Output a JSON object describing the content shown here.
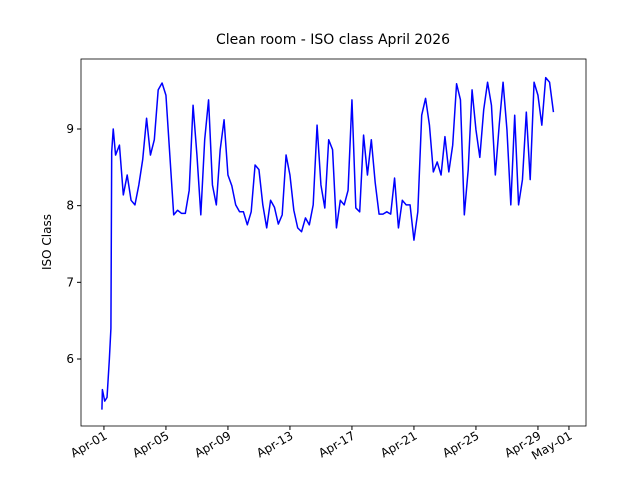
{
  "chart_data": {
    "type": "line",
    "title": "Clean room - ISO class April 2026",
    "ylabel": "ISO Class",
    "x": [
      -0.13,
      -0.1,
      0.05,
      0.2,
      0.35,
      0.45,
      0.5,
      0.6,
      0.75,
      1.0,
      1.25,
      1.5,
      1.75,
      2.0,
      2.25,
      2.5,
      2.75,
      3.0,
      3.25,
      3.5,
      3.75,
      4.0,
      4.25,
      4.5,
      4.75,
      5.0,
      5.25,
      5.5,
      5.75,
      6.0,
      6.25,
      6.5,
      6.75,
      7.0,
      7.25,
      7.5,
      7.75,
      8.0,
      8.25,
      8.5,
      8.75,
      9.0,
      9.25,
      9.5,
      9.75,
      10.0,
      10.25,
      10.5,
      10.75,
      11.0,
      11.25,
      11.5,
      11.75,
      12.0,
      12.25,
      12.5,
      12.75,
      13.0,
      13.25,
      13.5,
      13.75,
      14.0,
      14.25,
      14.5,
      14.75,
      15.0,
      15.25,
      15.5,
      15.75,
      16.0,
      16.25,
      16.5,
      16.75,
      17.0,
      17.25,
      17.5,
      17.75,
      18.0,
      18.25,
      18.5,
      18.75,
      19.0,
      19.25,
      19.5,
      19.75,
      20.0,
      20.25,
      20.5,
      20.75,
      21.0,
      21.25,
      21.5,
      21.75,
      22.0,
      22.25,
      22.5,
      22.75,
      23.0,
      23.25,
      23.5,
      23.75,
      24.0,
      24.25,
      24.5,
      24.75,
      25.0,
      25.25,
      25.5,
      25.75,
      26.0,
      26.25,
      26.5,
      26.75,
      27.0,
      27.25,
      27.5,
      27.75,
      28.0,
      28.25,
      28.5,
      28.75,
      29.0
    ],
    "series": [
      {
        "name": "ISO Class",
        "color": "#0000ff",
        "values": [
          5.34,
          5.6,
          5.45,
          5.5,
          6.0,
          6.4,
          8.7,
          9.0,
          8.66,
          8.79,
          8.14,
          8.4,
          8.07,
          8.01,
          8.27,
          8.6,
          9.14,
          8.66,
          8.86,
          9.51,
          9.6,
          9.44,
          8.66,
          7.88,
          7.94,
          7.9,
          7.9,
          8.2,
          9.31,
          8.66,
          7.88,
          8.86,
          9.38,
          8.27,
          8.01,
          8.73,
          9.12,
          8.4,
          8.26,
          8.01,
          7.92,
          7.92,
          7.75,
          7.92,
          8.53,
          8.47,
          8.01,
          7.71,
          8.07,
          7.98,
          7.76,
          7.88,
          8.66,
          8.4,
          7.94,
          7.71,
          7.66,
          7.84,
          7.75,
          8.01,
          9.05,
          8.27,
          7.97,
          8.86,
          8.73,
          7.71,
          8.07,
          8.01,
          8.2,
          9.38,
          7.97,
          7.92,
          8.92,
          8.4,
          8.86,
          8.3,
          7.89,
          7.89,
          7.92,
          7.89,
          8.36,
          7.71,
          8.07,
          8.01,
          8.01,
          7.55,
          7.92,
          9.18,
          9.4,
          9.05,
          8.44,
          8.57,
          8.4,
          8.9,
          8.44,
          8.79,
          9.59,
          9.38,
          7.88,
          8.47,
          9.51,
          8.99,
          8.63,
          9.25,
          9.61,
          9.31,
          8.4,
          9.05,
          9.61,
          8.99,
          8.01,
          9.18,
          8.01,
          8.34,
          9.22,
          8.34,
          9.61,
          9.44,
          9.05,
          9.67,
          9.61,
          9.22
        ]
      }
    ],
    "xlim": [
      -1.48,
      31.1
    ],
    "ylim": [
      5.126,
      9.913
    ],
    "xticks": [
      {
        "value": 0,
        "label": "Apr-01"
      },
      {
        "value": 4,
        "label": "Apr-05"
      },
      {
        "value": 8,
        "label": "Apr-09"
      },
      {
        "value": 12,
        "label": "Apr-13"
      },
      {
        "value": 16,
        "label": "Apr-17"
      },
      {
        "value": 20,
        "label": "Apr-21"
      },
      {
        "value": 24,
        "label": "Apr-25"
      },
      {
        "value": 28,
        "label": "Apr-29"
      },
      {
        "value": 30,
        "label": "May-01"
      }
    ],
    "yticks": [
      6,
      7,
      8,
      9
    ],
    "grid": false
  }
}
